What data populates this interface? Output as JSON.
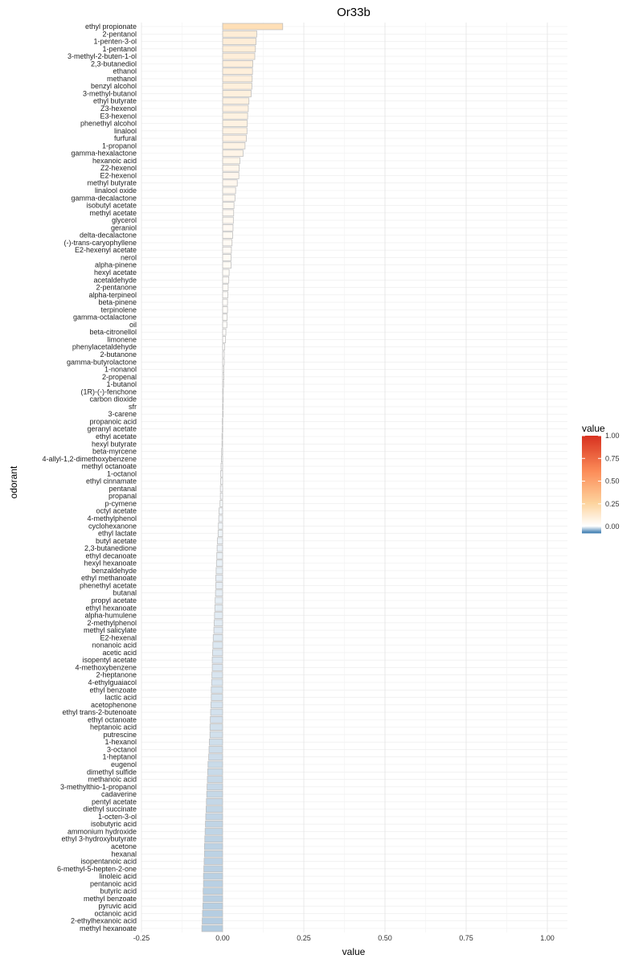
{
  "chart_data": {
    "type": "bar",
    "orientation": "horizontal",
    "title": "Or33b",
    "xlabel": "value",
    "ylabel": "odorant",
    "xlim": [
      -0.25,
      1.05
    ],
    "xticks": [
      -0.25,
      0.0,
      0.25,
      0.5,
      0.75,
      1.0
    ],
    "xtick_labels": [
      "-0.25",
      "0.00",
      "0.25",
      "0.50",
      "0.75",
      "1.00"
    ],
    "grid": true,
    "legend": {
      "title": "value",
      "position": "right",
      "ticks": [
        "1.00",
        "0.75",
        "0.50",
        "0.25",
        "0.00"
      ],
      "tick_values": [
        1.0,
        0.75,
        0.5,
        0.25,
        0.0
      ],
      "range": [
        -0.07,
        1.0
      ]
    },
    "colors": {
      "high": "#d7301f",
      "mid_high": "#fc8d59",
      "mid": "#fdd49e",
      "zero": "#ffffff",
      "low": "#4682b4",
      "bar_stroke": "#c0c0c0",
      "grid": "#ebebeb"
    },
    "categories": [
      "ethyl propionate",
      "2-pentanol",
      "1-penten-3-ol",
      "1-pentanol",
      "3-methyl-2-buten-1-ol",
      "2,3-butanediol",
      "ethanol",
      "methanol",
      "benzyl alcohol",
      "3-methyl-butanol",
      "ethyl butyrate",
      "Z3-hexenol",
      "E3-hexenol",
      "phenethyl alcohol",
      "linalool",
      "furfural",
      "1-propanol",
      "gamma-hexalactone",
      "hexanoic acid",
      "Z2-hexenol",
      "E2-hexenol",
      "methyl butyrate",
      "linalool oxide",
      "gamma-decalactone",
      "isobutyl acetate",
      "methyl acetate",
      "glycerol",
      "geraniol",
      "delta-decalactone",
      "(-)-trans-caryophyllene",
      "E2-hexenyl acetate",
      "nerol",
      "alpha-pinene",
      "hexyl acetate",
      "acetaldehyde",
      "2-pentanone",
      "alpha-terpineol",
      "beta-pinene",
      "terpinolene",
      "gamma-octalactone",
      "oil",
      "beta-citronellol",
      "limonene",
      "phenylacetaldehyde",
      "2-butanone",
      "gamma-butyrolactone",
      "1-nonanol",
      "2-propenal",
      "1-butanol",
      "(1R)-(-)-fenchone",
      "carbon dioxide",
      "sfr",
      "3-carene",
      "propanoic acid",
      "geranyl acetate",
      "ethyl acetate",
      "hexyl butyrate",
      "beta-myrcene",
      "4-allyl-1,2-dimethoxybenzene",
      "methyl octanoate",
      "1-octanol",
      "ethyl cinnamate",
      "pentanal",
      "propanal",
      "p-cymene",
      "octyl acetate",
      "4-methylphenol",
      "cyclohexanone",
      "ethyl lactate",
      "butyl acetate",
      "2,3-butanedione",
      "ethyl decanoate",
      "hexyl hexanoate",
      "benzaldehyde",
      "ethyl methanoate",
      "phenethyl acetate",
      "butanal",
      "propyl acetate",
      "ethyl hexanoate",
      "alpha-humulene",
      "2-methylphenol",
      "methyl salicylate",
      "E2-hexenal",
      "nonanoic acid",
      "acetic acid",
      "isopentyl acetate",
      "4-methoxybenzene",
      "2-heptanone",
      "4-ethylguaiacol",
      "ethyl benzoate",
      "lactic acid",
      "acetophenone",
      "ethyl trans-2-butenoate",
      "ethyl octanoate",
      "heptanoic acid",
      "putrescine",
      "1-hexanol",
      "3-octanol",
      "1-heptanol",
      "eugenol",
      "dimethyl sulfide",
      "methanoic acid",
      "3-methylthio-1-propanol",
      "cadaverine",
      "pentyl acetate",
      "diethyl succinate",
      "1-octen-3-ol",
      "isobutyric acid",
      "ammonium hydroxide",
      "ethyl 3-hydroxybutyrate",
      "acetone",
      "hexanal",
      "isopentanoic acid",
      "6-methyl-5-hepten-2-one",
      "linoleic acid",
      "pentanoic acid",
      "butyric acid",
      "methyl benzoate",
      "pyruvic acid",
      "octanoic acid",
      "2-ethylhexanoic acid",
      "methyl hexanoate"
    ],
    "values": [
      0.185,
      0.105,
      0.103,
      0.101,
      0.099,
      0.093,
      0.092,
      0.091,
      0.09,
      0.088,
      0.081,
      0.079,
      0.077,
      0.076,
      0.075,
      0.073,
      0.069,
      0.063,
      0.053,
      0.051,
      0.05,
      0.045,
      0.04,
      0.038,
      0.035,
      0.034,
      0.033,
      0.032,
      0.031,
      0.029,
      0.027,
      0.026,
      0.026,
      0.02,
      0.019,
      0.017,
      0.016,
      0.015,
      0.015,
      0.014,
      0.013,
      0.01,
      0.009,
      0.006,
      0.005,
      0.005,
      0.004,
      0.004,
      0.003,
      0.002,
      0.002,
      0.001,
      0.0,
      -0.001,
      -0.001,
      -0.002,
      -0.002,
      -0.003,
      -0.004,
      -0.005,
      -0.006,
      -0.006,
      -0.007,
      -0.007,
      -0.008,
      -0.011,
      -0.012,
      -0.013,
      -0.014,
      -0.016,
      -0.017,
      -0.018,
      -0.019,
      -0.02,
      -0.021,
      -0.021,
      -0.022,
      -0.023,
      -0.024,
      -0.025,
      -0.026,
      -0.027,
      -0.029,
      -0.03,
      -0.031,
      -0.032,
      -0.032,
      -0.033,
      -0.034,
      -0.035,
      -0.035,
      -0.036,
      -0.037,
      -0.038,
      -0.039,
      -0.039,
      -0.041,
      -0.042,
      -0.043,
      -0.045,
      -0.046,
      -0.047,
      -0.048,
      -0.049,
      -0.05,
      -0.051,
      -0.052,
      -0.053,
      -0.054,
      -0.055,
      -0.056,
      -0.056,
      -0.057,
      -0.058,
      -0.059,
      -0.059,
      -0.06,
      -0.06,
      -0.061,
      -0.062,
      -0.063,
      -0.064
    ]
  }
}
